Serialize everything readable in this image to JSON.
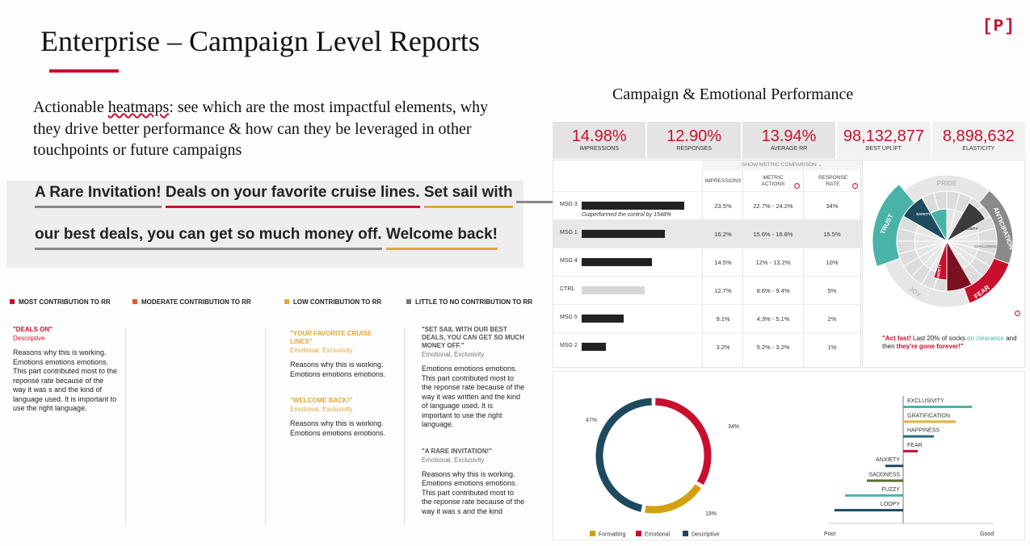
{
  "header": {
    "title": "Enterprise – Campaign Level Reports",
    "logo": "[P]"
  },
  "intro": {
    "lead": "Actionable ",
    "lead_underlined": "heatmaps",
    "rest": ": see which are the most impactful elements, why they drive better performance & how can they be leveraged in other touchpoints or future campaigns"
  },
  "banner": {
    "line1": [
      {
        "text": "A Rare Invitation!",
        "color": "#888888"
      },
      {
        "text": "Deals on your favorite cruise lines.",
        "color": "#c8102e"
      },
      {
        "text": "Set sail with",
        "color": "#e0a838"
      }
    ],
    "line1_extra_underline_color": "#888888",
    "line2": [
      {
        "text": "our best deals, you can get so much money off.",
        "color": "#888888"
      },
      {
        "text": "Welcome back!",
        "color": "#e0a838"
      }
    ]
  },
  "contribution": {
    "columns": [
      {
        "label": "MOST CONTRIBUTION TO RR",
        "color": "#c8102e"
      },
      {
        "label": "MODERATE CONTRIBUTION TO RR",
        "color": "#e8591a"
      },
      {
        "label": "LOW CONTRIBUTION TO RR",
        "color": "#e0a838"
      },
      {
        "label": "LITTLE TO NO CONTRIBUTION TO RR",
        "color": "#777777"
      }
    ],
    "col1": [
      {
        "phrase": "\"DEALS ON\"",
        "tag": "Descriptive",
        "reason": "Reasons why this is working. Emotions emotions emotions. This part contributed most to the reponse rate because of the way it was  s and the kind of language used. It is important to use the right language."
      }
    ],
    "col3": [
      {
        "phrase": "\"YOUR FAVORITE CRUISE LINES\"",
        "tag": "Emotional, Exclusivity",
        "reason": "Reasons why this is working. Emotions emotions emotions."
      },
      {
        "phrase": "\"WELCOME BACK!\"",
        "tag": "Emotional, Exclusivity",
        "reason": "Reasons why this is working. Emotions emotions emotions."
      }
    ],
    "col4": [
      {
        "phrase": "\"SET SAIL WITH OUR BEST DEALS, YOU CAN GET SO MUCH MONEY OFF.\"",
        "tag": "Emotional, Exclusivity",
        "reason": "Emotions emotions emotions. This part contributed most to the reponse rate because of the way it was written and the kind of language used. It is important to use the right language."
      },
      {
        "phrase": "\"A RARE INVITATION!\"",
        "tag": "Emotional, Exclusivity",
        "reason": "Reasons why this is working. Emotions emotions emotions. This part contributed most to the reponse rate because of the way it was  s and the kind"
      }
    ]
  },
  "performance": {
    "title": "Campaign & Emotional Performance",
    "kpis": [
      {
        "value": "14.98%",
        "label": "IMPRESSIONS"
      },
      {
        "value": "12.90%",
        "label": "RESPONSES"
      },
      {
        "value": "13.94%",
        "label": "AVERAGE  RR"
      },
      {
        "value": "98,132,877",
        "label": "BEST UPLIFT"
      },
      {
        "value": "8,898,632",
        "label": "ELASTICITY"
      }
    ],
    "table": {
      "show_comparison": "SHOW METRIC COMPARISON",
      "headers": [
        "IMPRESSIONS",
        "METRIC ACTIONS",
        "RESPONSE RATE"
      ],
      "rows": [
        {
          "label": "MSG 3",
          "bar": 0.98,
          "impressions": "23.5%",
          "actions": "22.7% - 24.2%",
          "rate": "34%",
          "note": "Outperformed the control by 1548%",
          "color": "#222222"
        },
        {
          "label": "MSG 1",
          "bar": 0.79,
          "impressions": "16.2%",
          "actions": "15.6% - 16.8%",
          "rate": "15.5%",
          "note": "",
          "color": "#222222",
          "highlight": true
        },
        {
          "label": "MSG 4",
          "bar": 0.67,
          "impressions": "14.5%",
          "actions": "12% - 13.2%",
          "rate": "10%",
          "note": "",
          "color": "#222222"
        },
        {
          "label": "CTRL",
          "bar": 0.6,
          "impressions": "12.7%",
          "actions": "8.6% - 9.4%",
          "rate": "5%",
          "note": "",
          "color": "#d8d8d8"
        },
        {
          "label": "MSG 5",
          "bar": 0.4,
          "impressions": "9.1%",
          "actions": "4.3% - 5.1%",
          "rate": "2%",
          "note": "",
          "color": "#222222"
        },
        {
          "label": "MSG 2",
          "bar": 0.23,
          "impressions": "3.2%",
          "actions": "5.2% - 3.2%",
          "rate": "1%",
          "note": "",
          "color": "#222222"
        }
      ]
    },
    "wheel": {
      "labels": [
        "PRIDE",
        "ANTICIPATION",
        "FEAR",
        "JOY",
        "TRUST"
      ],
      "inner": [
        "SAFETY",
        "CURIOSITY",
        "CHALLENGE",
        "ANXIETY"
      ],
      "quote_a": "\"Act fast!",
      "quote_b": " Last 20% of socks ",
      "quote_c": "on clearance",
      "quote_d": " and then ",
      "quote_e": "they're gone forever!\""
    }
  },
  "chart_data": [
    {
      "type": "pie",
      "labels": [
        "Formatting",
        "Emotional",
        "Descriptive"
      ],
      "values": [
        19,
        34,
        47
      ],
      "data_labels": [
        "19%",
        "34%",
        "47%"
      ],
      "colors": [
        "#d4a00e",
        "#c8102e",
        "#1d4a5c"
      ],
      "legend": "bottom"
    },
    {
      "type": "bar",
      "orientation": "horizontal",
      "categories": [
        "EXCLUSIVITY",
        "GRATIFICATION",
        "HAPPINESS",
        "FEAR",
        "ANXIETY",
        "SADDNESS",
        "FUZZY",
        "LOOPY"
      ],
      "values": [
        0.85,
        0.65,
        0.38,
        0.18,
        -0.22,
        -0.45,
        -0.72,
        -0.85
      ],
      "colors": [
        "#4ab3a8",
        "#e8b040",
        "#2a6a80",
        "#c8102e",
        "#1d4a5c",
        "#5a6b30",
        "#4ab3a8",
        "#1d4a5c"
      ],
      "xlabels": [
        "Poor",
        "Good"
      ]
    }
  ]
}
